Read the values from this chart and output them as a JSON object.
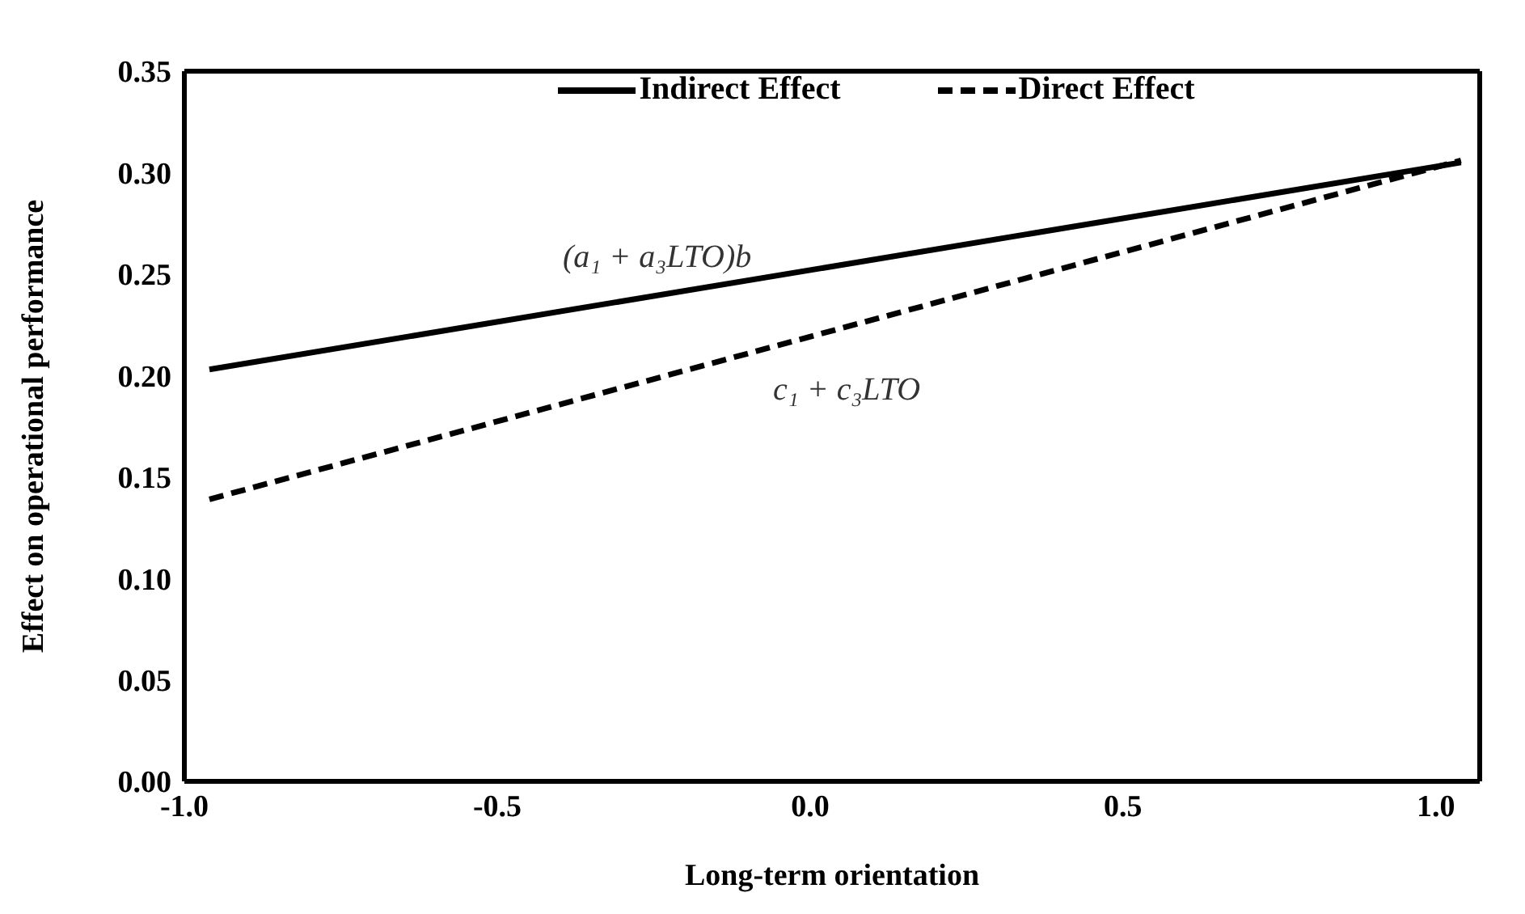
{
  "chart_data": {
    "type": "line",
    "xlabel": "Long-term orientation",
    "ylabel": "Effect on operational performance",
    "x": [
      -0.96,
      1.04
    ],
    "series": [
      {
        "name": "Indirect Effect",
        "color": "#000000",
        "line_style": "solid",
        "values": [
          0.203,
          0.305
        ]
      },
      {
        "name": "Direct Effect",
        "color": "#000000",
        "line_style": "dashed",
        "values": [
          0.139,
          0.306
        ]
      }
    ],
    "xlim": [
      -1,
      1.07
    ],
    "xticks": [
      {
        "value": -1,
        "label": "-1.0"
      },
      {
        "value": -0.5,
        "label": "-0.5"
      },
      {
        "value": 0,
        "label": "0.0"
      },
      {
        "value": 0.5,
        "label": "0.5"
      },
      {
        "value": 1,
        "label": "1.0"
      }
    ],
    "ylim": [
      0,
      0.35
    ],
    "yticks": [
      {
        "value": 0,
        "label": "0.00"
      },
      {
        "value": 0.05,
        "label": "0.05"
      },
      {
        "value": 0.1,
        "label": "0.10"
      },
      {
        "value": 0.15,
        "label": "0.15"
      },
      {
        "value": 0.2,
        "label": "0.20"
      },
      {
        "value": 0.25,
        "label": "0.25"
      },
      {
        "value": 0.3,
        "label": "0.30"
      },
      {
        "value": 0.35,
        "label": "0.35"
      }
    ],
    "annotations": [
      "(a₁ + a₃LTO)b",
      "c₁ + c₃LTO"
    ],
    "legend": "top",
    "marker": "none"
  }
}
